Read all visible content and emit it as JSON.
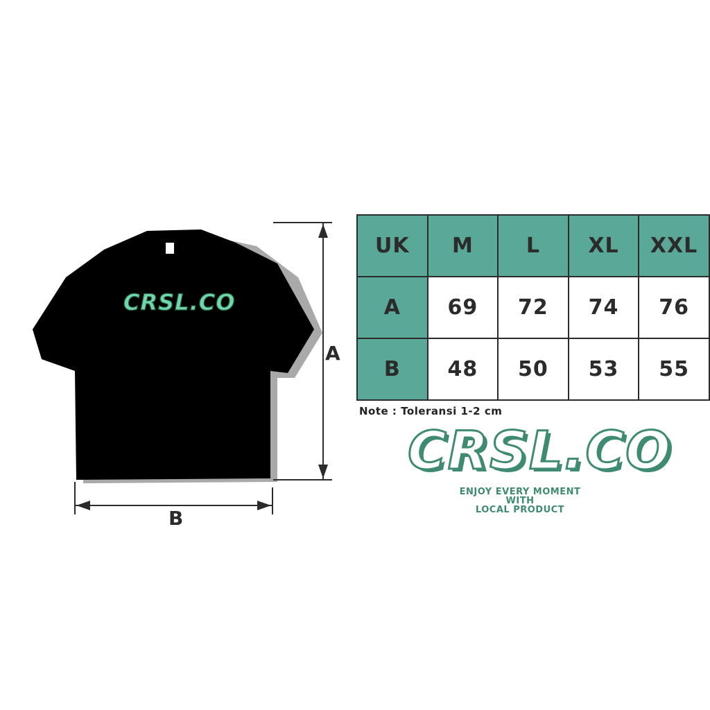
{
  "shirt": {
    "print_text": "CRSL.CO",
    "color": "#000000",
    "print_color": "#6fd7aa"
  },
  "dimensions": {
    "length_label": "A",
    "width_label": "B"
  },
  "size_table": {
    "header": [
      "UK",
      "M",
      "L",
      "XL",
      "XXL"
    ],
    "rows": [
      {
        "label": "A",
        "values": [
          "69",
          "72",
          "74",
          "76"
        ]
      },
      {
        "label": "B",
        "values": [
          "48",
          "50",
          "53",
          "55"
        ]
      }
    ],
    "header_color": "#5aa897"
  },
  "note": "Note : Toleransi 1-2 cm",
  "brand": {
    "logo": "CRSL.CO",
    "tagline": [
      "ENJOY EVERY MOMENT",
      "WITH",
      "LOCAL PRODUCT"
    ],
    "color": "#3f8a72"
  }
}
